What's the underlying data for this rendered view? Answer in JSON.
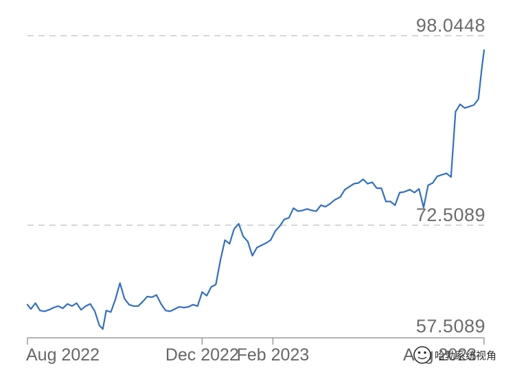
{
  "chart_data": {
    "type": "line",
    "title": "",
    "xlabel": "",
    "ylabel": "",
    "y_ticks": [
      "98.0448",
      "72.5089",
      "57.5089"
    ],
    "x_ticks": [
      "Aug 2022",
      "Dec 2022",
      "Feb 2023",
      "Aug 2023"
    ],
    "ylim": [
      57.5089,
      98.0448
    ],
    "xlim": [
      "2022-07-01",
      "2023-08-05"
    ],
    "grid": "dashed horizontal at y tick values",
    "color": "#2f6ec6",
    "series": [
      {
        "x": [
          "2022-07-01",
          "2022-07-04",
          "2022-07-08",
          "2022-07-12",
          "2022-07-16",
          "2022-07-20",
          "2022-07-24",
          "2022-07-28",
          "2022-08-01",
          "2022-08-05",
          "2022-08-09",
          "2022-08-13",
          "2022-08-17",
          "2022-08-21",
          "2022-08-25",
          "2022-08-29",
          "2022-09-02",
          "2022-09-05",
          "2022-09-08",
          "2022-09-12",
          "2022-09-16",
          "2022-09-20",
          "2022-09-24",
          "2022-09-28",
          "2022-10-02",
          "2022-10-06",
          "2022-10-10",
          "2022-10-14",
          "2022-10-18",
          "2022-10-22",
          "2022-10-26",
          "2022-10-30",
          "2022-11-03",
          "2022-11-07",
          "2022-11-11",
          "2022-11-15",
          "2022-11-19",
          "2022-11-23",
          "2022-11-27",
          "2022-12-01",
          "2022-12-05",
          "2022-12-09",
          "2022-12-13",
          "2022-12-17",
          "2022-12-21",
          "2022-12-25",
          "2022-12-29",
          "2023-01-02",
          "2023-01-06",
          "2023-01-10",
          "2023-01-14",
          "2023-01-18",
          "2023-01-22",
          "2023-01-26",
          "2023-01-30",
          "2023-02-03",
          "2023-02-07",
          "2023-02-11",
          "2023-02-15",
          "2023-02-19",
          "2023-02-23",
          "2023-02-27",
          "2023-03-03",
          "2023-03-07",
          "2023-03-11",
          "2023-03-15",
          "2023-03-19",
          "2023-03-23",
          "2023-03-27",
          "2023-04-01",
          "2023-04-05",
          "2023-04-09",
          "2023-04-13",
          "2023-04-17",
          "2023-04-21",
          "2023-04-25",
          "2023-04-29",
          "2023-05-03",
          "2023-05-07",
          "2023-05-11",
          "2023-05-15",
          "2023-05-19",
          "2023-05-23",
          "2023-05-27",
          "2023-06-01",
          "2023-06-05",
          "2023-06-09",
          "2023-06-13",
          "2023-06-17",
          "2023-06-21",
          "2023-06-25",
          "2023-06-29",
          "2023-07-03",
          "2023-07-07",
          "2023-07-11",
          "2023-07-15",
          "2023-07-19",
          "2023-07-23",
          "2023-07-27",
          "2023-07-31",
          "2023-08-03",
          "2023-08-05"
        ],
        "y": [
          61.8,
          61.2,
          62.0,
          61.0,
          60.9,
          61.1,
          61.4,
          61.6,
          61.3,
          61.9,
          61.6,
          62.0,
          61.1,
          61.6,
          61.9,
          60.9,
          59.0,
          58.5,
          61.0,
          60.8,
          62.5,
          64.7,
          62.6,
          61.8,
          61.6,
          61.6,
          62.2,
          62.9,
          62.8,
          63.1,
          61.9,
          61.0,
          60.9,
          61.2,
          61.5,
          61.4,
          61.5,
          61.8,
          61.6,
          63.5,
          63.0,
          64.2,
          64.5,
          67.8,
          70.5,
          70.0,
          72.0,
          72.7,
          71.0,
          70.3,
          68.4,
          69.5,
          69.8,
          70.1,
          70.5,
          71.7,
          72.4,
          73.3,
          73.5,
          74.8,
          74.4,
          74.5,
          74.7,
          74.5,
          74.4,
          75.2,
          75.0,
          75.4,
          75.9,
          76.3,
          77.3,
          77.7,
          78.1,
          78.2,
          78.7,
          78.1,
          78.3,
          77.5,
          77.5,
          75.7,
          75.7,
          75.2,
          76.9,
          77.0,
          77.3,
          76.9,
          77.4,
          74.9,
          77.9,
          78.2,
          79.1,
          79.3,
          79.5,
          79.0,
          87.8,
          88.8,
          88.3,
          88.5,
          88.7,
          89.5,
          93.7,
          96.1
        ]
      }
    ]
  },
  "watermark": {
    "text": "哈勃系统视角"
  }
}
